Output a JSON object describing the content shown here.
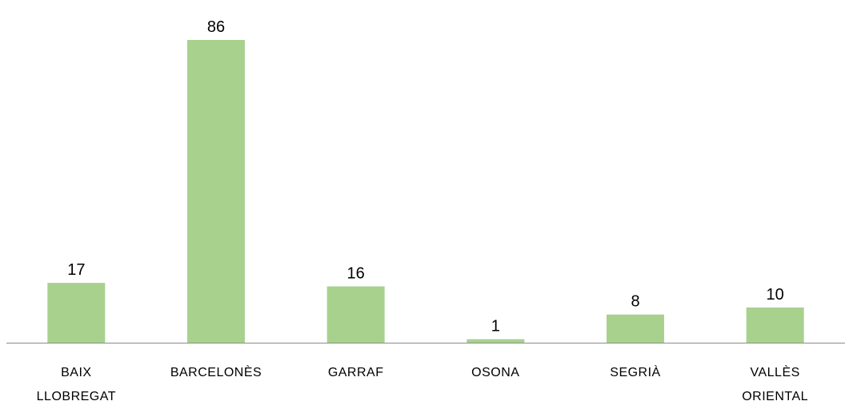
{
  "chart_data": {
    "type": "bar",
    "categories": [
      "BAIX LLOBREGAT",
      "BARCELONÈS",
      "GARRAF",
      "OSONA",
      "SEGRIÀ",
      "VALLÈS ORIENTAL"
    ],
    "values": [
      17,
      86,
      16,
      1,
      8,
      10
    ],
    "color": "#a9d18e"
  }
}
